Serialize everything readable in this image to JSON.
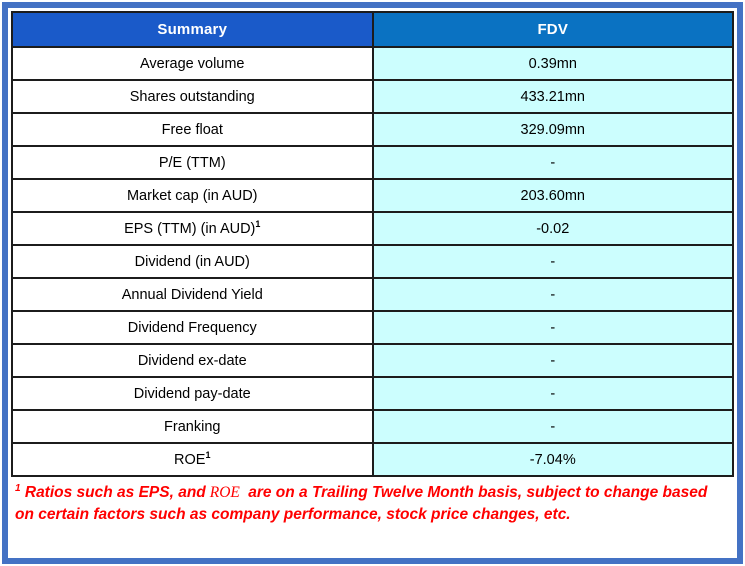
{
  "colors": {
    "frame": "#4472C4",
    "header_left_bg": "#1A5AC9",
    "header_right_bg": "#0A72C2",
    "header_text": "#FFFFFF",
    "value_bg": "#CCFEFE",
    "border": "#1C1C1C",
    "label_text": "#000000",
    "footnote": "#FF0000"
  },
  "table": {
    "header": {
      "left": "Summary",
      "right": "FDV"
    },
    "rows": [
      {
        "label": "Average volume",
        "sup": "",
        "value": "0.39mn"
      },
      {
        "label": "Shares outstanding",
        "sup": "",
        "value": "433.21mn"
      },
      {
        "label": "Free float",
        "sup": "",
        "value": "329.09mn"
      },
      {
        "label": "P/E (TTM)",
        "sup": "",
        "value": "-"
      },
      {
        "label": "Market cap (in AUD)",
        "sup": "",
        "value": "203.60mn"
      },
      {
        "label": "EPS (TTM) (in AUD)",
        "sup": "1",
        "value": "-0.02"
      },
      {
        "label": "Dividend (in AUD)",
        "sup": "",
        "value": "-"
      },
      {
        "label": "Annual Dividend Yield",
        "sup": "",
        "value": "-"
      },
      {
        "label": "Dividend Frequency",
        "sup": "",
        "value": "-"
      },
      {
        "label": "Dividend ex-date",
        "sup": "",
        "value": "-"
      },
      {
        "label": "Dividend pay-date",
        "sup": "",
        "value": "-"
      },
      {
        "label": "Franking",
        "sup": "",
        "value": "-"
      },
      {
        "label": "ROE",
        "sup": "1",
        "value": "-7.04%"
      }
    ]
  },
  "footnote": {
    "sup": "1",
    "part1": " Ratios such as EPS, and",
    "roe": "ROE",
    "part2": " are on a Trailing Twelve Month basis, subject to change based on certain factors such as company performance, stock price changes, etc."
  }
}
